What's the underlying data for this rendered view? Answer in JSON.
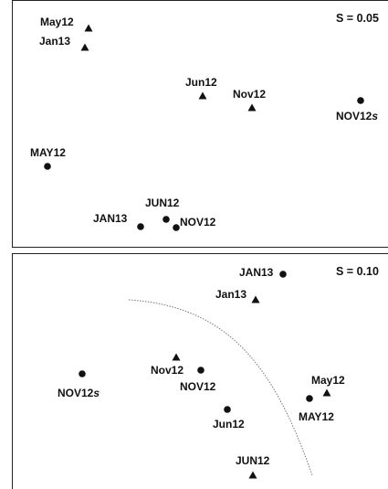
{
  "chart_data": [
    {
      "type": "scatter",
      "scale_label": "S = 0.05",
      "legend": "none",
      "grid": false,
      "points": [
        {
          "label": "May12",
          "marker": "triangle"
        },
        {
          "label": "Jan13",
          "marker": "triangle"
        },
        {
          "label": "Jun12",
          "marker": "triangle"
        },
        {
          "label": "Nov12",
          "marker": "triangle"
        },
        {
          "label": "NOV12s",
          "label_main": "NOV12",
          "label_suffix": "s",
          "marker": "circle"
        },
        {
          "label": "MAY12",
          "marker": "circle"
        },
        {
          "label": "JUN12",
          "marker": "circle"
        },
        {
          "label": "JAN13",
          "marker": "circle"
        },
        {
          "label": "NOV12",
          "marker": "circle"
        }
      ]
    },
    {
      "type": "scatter",
      "scale_label": "S = 0.10",
      "legend": "none",
      "grid": false,
      "points": [
        {
          "label": "JAN13",
          "marker": "circle"
        },
        {
          "label": "Jan13",
          "marker": "triangle"
        },
        {
          "label": "Nov12",
          "marker": "triangle"
        },
        {
          "label": "NOV12",
          "marker": "circle"
        },
        {
          "label": "NOV12s",
          "label_main": "NOV12",
          "label_suffix": "s",
          "marker": "circle"
        },
        {
          "label": "Jun12",
          "marker": "circle"
        },
        {
          "label": "May12",
          "marker": "triangle"
        },
        {
          "label": "MAY12",
          "marker": "circle"
        },
        {
          "label": "JUN12",
          "marker": "triangle"
        }
      ]
    }
  ],
  "colors": {
    "marker": "#111111",
    "frame": "#222222",
    "separator": "#777777"
  }
}
